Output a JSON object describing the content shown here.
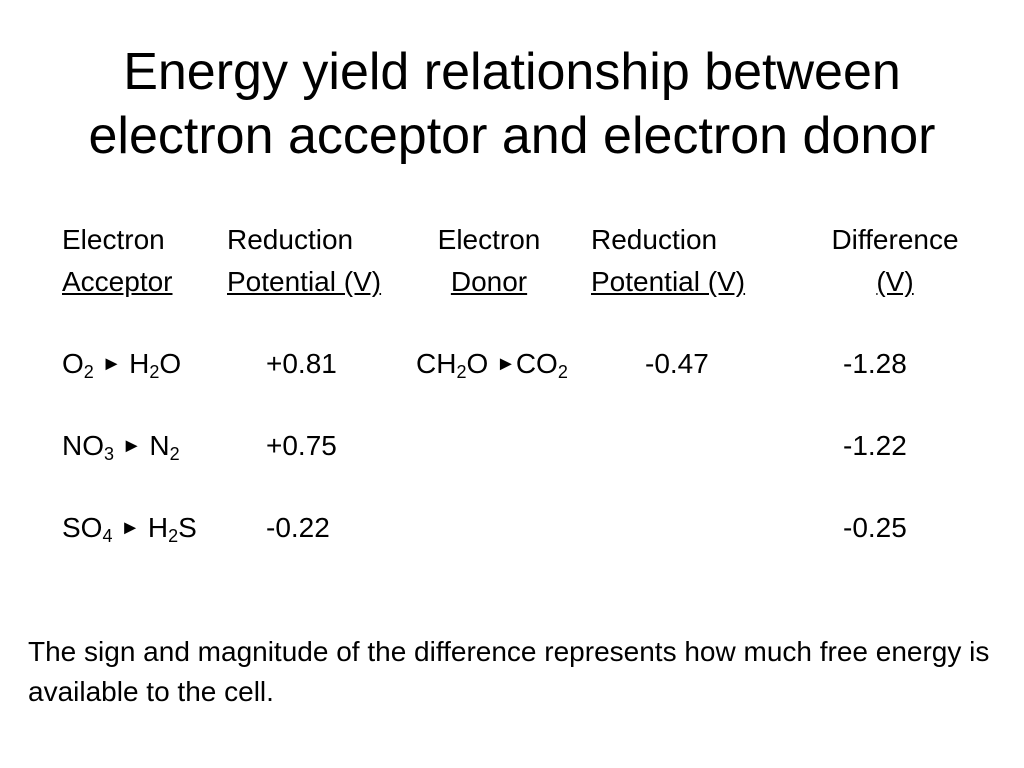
{
  "title": {
    "line1": "Energy yield relationship between",
    "line2": "electron acceptor and electron donor"
  },
  "headers": {
    "acceptor": [
      "Electron",
      "Acceptor"
    ],
    "acceptor_potential": [
      "Reduction",
      "Potential (V)"
    ],
    "donor": [
      "Electron",
      "Donor"
    ],
    "donor_potential": [
      "Reduction",
      "Potential (V)"
    ],
    "difference": [
      "Difference",
      "(V)"
    ]
  },
  "arrow_glyph": "►",
  "rows": [
    {
      "acceptor_from": {
        "base": "O",
        "sub": "2"
      },
      "acceptor_to": {
        "a": "H",
        "sub": "2",
        "b": "O"
      },
      "acceptor_potential": "+0.81",
      "donor_from": {
        "a": "CH",
        "sub": "2",
        "b": "O"
      },
      "donor_to": {
        "base": "CO",
        "sub": "2"
      },
      "donor_potential": "-0.47",
      "difference": "-1.28"
    },
    {
      "acceptor_from": {
        "base": "NO",
        "sub": "3"
      },
      "acceptor_to": {
        "base": "N",
        "sub": "2"
      },
      "acceptor_potential": "+0.75",
      "difference": "-1.22"
    },
    {
      "acceptor_from": {
        "base": "SO",
        "sub": "4"
      },
      "acceptor_to": {
        "a": "H",
        "sub": "2",
        "b": "S"
      },
      "acceptor_potential": "-0.22",
      "difference": "-0.25"
    }
  ],
  "footer": "The sign and magnitude of the difference represents how much free energy is available to the cell."
}
